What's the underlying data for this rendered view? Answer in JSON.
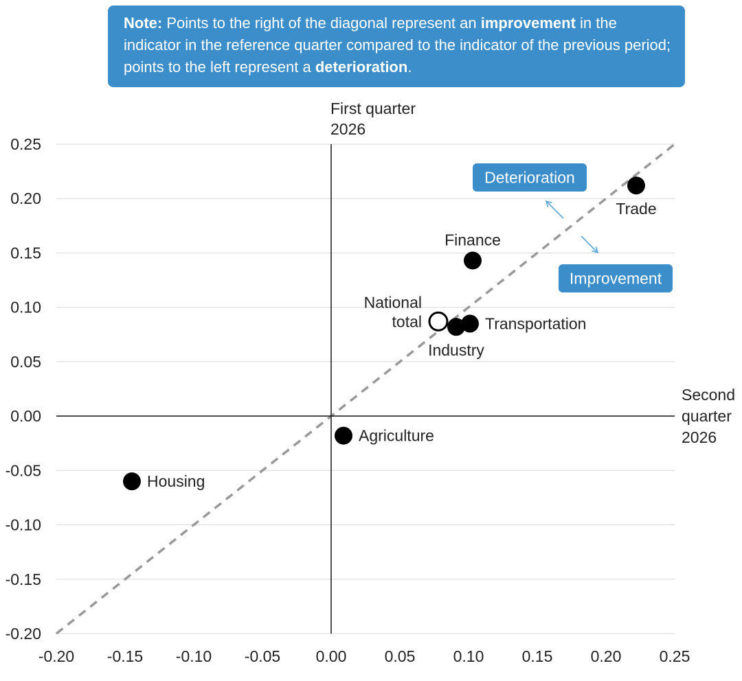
{
  "note": {
    "label": "Note:",
    "text_1": " Points to the right of the diagonal represent an ",
    "improvement": "improvement",
    "text_2": " in the indicator in the reference quarter compared to the indicator of the previous period; points to the left represent a ",
    "deterioration": "deterioration",
    "text_3": "."
  },
  "annotations": {
    "deterioration": "Deterioration",
    "improvement": "Improvement"
  },
  "colors": {
    "note_bg": "#3b8ec9",
    "point": "#000000",
    "diagonal": "#999999",
    "arrow": "#5ba7d8"
  },
  "chart_data": {
    "type": "scatter",
    "xlabel": [
      "Second",
      "quarter",
      "2026"
    ],
    "ylabel": [
      "First quarter",
      "2026"
    ],
    "xlim": [
      -0.2,
      0.25
    ],
    "ylim": [
      -0.2,
      0.25
    ],
    "x_ticks": [
      "-0.20",
      "-0.15",
      "-0.10",
      "-0.05",
      "0.00",
      "0.05",
      "0.10",
      "0.15",
      "0.20",
      "0.25"
    ],
    "y_ticks": [
      "0.25",
      "0.20",
      "0.15",
      "0.10",
      "0.05",
      "0.00",
      "-0.05",
      "-0.10",
      "-0.15",
      "-0.20"
    ],
    "grid": "horizontal",
    "diagonal": true,
    "points": [
      {
        "label": [
          "Trade"
        ],
        "x": 0.222,
        "y": 0.212,
        "hollow": false,
        "label_pos": "below"
      },
      {
        "label": [
          "Finance"
        ],
        "x": 0.103,
        "y": 0.143,
        "hollow": false,
        "label_pos": "above"
      },
      {
        "label": [
          "National",
          "total"
        ],
        "x": 0.078,
        "y": 0.087,
        "hollow": true,
        "label_pos": "left"
      },
      {
        "label": [
          "Transportation"
        ],
        "x": 0.101,
        "y": 0.085,
        "hollow": false,
        "label_pos": "right"
      },
      {
        "label": [
          "Industry"
        ],
        "x": 0.091,
        "y": 0.082,
        "hollow": false,
        "label_pos": "below"
      },
      {
        "label": [
          "Agriculture"
        ],
        "x": 0.009,
        "y": -0.018,
        "hollow": false,
        "label_pos": "right"
      },
      {
        "label": [
          "Housing"
        ],
        "x": -0.145,
        "y": -0.06,
        "hollow": false,
        "label_pos": "right"
      }
    ]
  }
}
